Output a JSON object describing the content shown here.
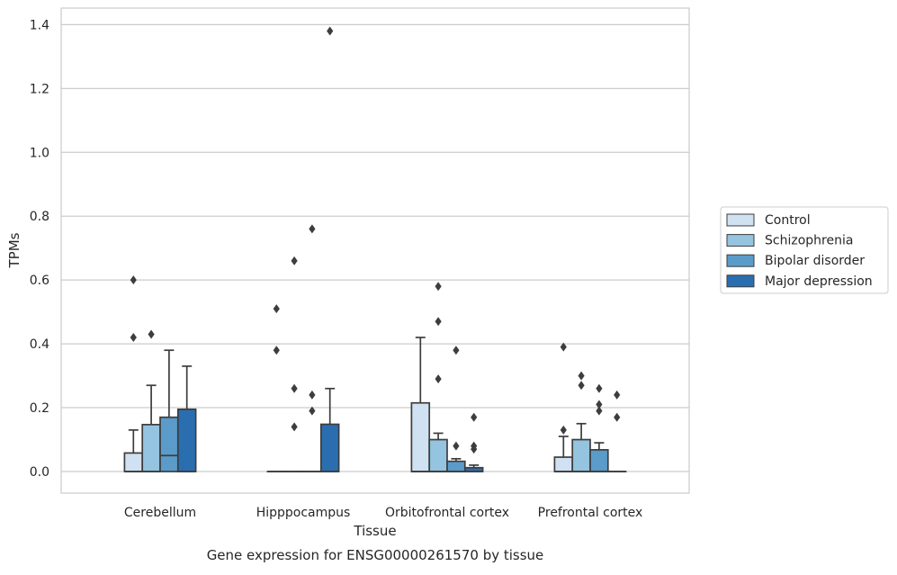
{
  "chart_data": {
    "type": "box",
    "xlabel": "Tissue",
    "ylabel": "TPMs",
    "caption": "Gene expression for ENSG00000261570 by tissue",
    "ylim": [
      -0.07,
      1.45
    ],
    "yticks": [
      "0.0",
      "0.2",
      "0.4",
      "0.6",
      "0.8",
      "1.0",
      "1.2",
      "1.4"
    ],
    "grid": "y",
    "legend_position": "right",
    "categories": [
      "Cerebellum",
      "Hipppocampus",
      "Orbitofrontal cortex",
      "Prefrontal cortex"
    ],
    "series": [
      {
        "name": "Control",
        "color": "#d0e1f2",
        "boxes": [
          {
            "q1": 0.0,
            "median": 0.0,
            "q3": 0.058,
            "whisker_low": 0.0,
            "whisker_high": 0.13,
            "outliers": [
              0.42,
              0.6
            ]
          },
          {
            "q1": 0.0,
            "median": 0.0,
            "q3": 0.0,
            "whisker_low": 0.0,
            "whisker_high": 0.0,
            "outliers": [
              0.38,
              0.51
            ]
          },
          {
            "q1": 0.0,
            "median": 0.0,
            "q3": 0.215,
            "whisker_low": 0.0,
            "whisker_high": 0.42,
            "outliers": []
          },
          {
            "q1": 0.0,
            "median": 0.0,
            "q3": 0.045,
            "whisker_low": 0.0,
            "whisker_high": 0.11,
            "outliers": [
              0.13,
              0.39
            ]
          }
        ]
      },
      {
        "name": "Schizophrenia",
        "color": "#94c4df",
        "boxes": [
          {
            "q1": 0.0,
            "median": 0.0,
            "q3": 0.147,
            "whisker_low": 0.0,
            "whisker_high": 0.27,
            "outliers": [
              0.43
            ]
          },
          {
            "q1": 0.0,
            "median": 0.0,
            "q3": 0.0,
            "whisker_low": 0.0,
            "whisker_high": 0.0,
            "outliers": [
              0.14,
              0.26,
              0.66
            ]
          },
          {
            "q1": 0.0,
            "median": 0.0,
            "q3": 0.1,
            "whisker_low": 0.0,
            "whisker_high": 0.12,
            "outliers": [
              0.29,
              0.47,
              0.58
            ]
          },
          {
            "q1": 0.0,
            "median": 0.0,
            "q3": 0.1,
            "whisker_low": 0.0,
            "whisker_high": 0.15,
            "outliers": [
              0.27,
              0.3
            ]
          }
        ]
      },
      {
        "name": "Bipolar disorder",
        "color": "#5a9bc9",
        "boxes": [
          {
            "q1": 0.0,
            "median": 0.05,
            "q3": 0.17,
            "whisker_low": 0.0,
            "whisker_high": 0.38,
            "outliers": []
          },
          {
            "q1": 0.0,
            "median": 0.0,
            "q3": 0.0,
            "whisker_low": 0.0,
            "whisker_high": 0.0,
            "outliers": [
              0.19,
              0.24,
              0.76
            ]
          },
          {
            "q1": 0.0,
            "median": 0.0,
            "q3": 0.032,
            "whisker_low": 0.0,
            "whisker_high": 0.04,
            "outliers": [
              0.08,
              0.38
            ]
          },
          {
            "q1": 0.0,
            "median": 0.0,
            "q3": 0.068,
            "whisker_low": 0.0,
            "whisker_high": 0.09,
            "outliers": [
              0.19,
              0.21,
              0.26
            ]
          }
        ]
      },
      {
        "name": "Major depression",
        "color": "#2a6eb0",
        "boxes": [
          {
            "q1": 0.0,
            "median": 0.0,
            "q3": 0.195,
            "whisker_low": 0.0,
            "whisker_high": 0.33,
            "outliers": []
          },
          {
            "q1": 0.0,
            "median": 0.0,
            "q3": 0.148,
            "whisker_low": 0.0,
            "whisker_high": 0.26,
            "outliers": [
              1.38
            ]
          },
          {
            "q1": 0.0,
            "median": 0.0,
            "q3": 0.012,
            "whisker_low": 0.0,
            "whisker_high": 0.02,
            "outliers": [
              0.07,
              0.08,
              0.17
            ]
          },
          {
            "q1": 0.0,
            "median": 0.0,
            "q3": 0.0,
            "whisker_low": 0.0,
            "whisker_high": 0.0,
            "outliers": [
              0.17,
              0.24
            ]
          }
        ]
      }
    ]
  }
}
